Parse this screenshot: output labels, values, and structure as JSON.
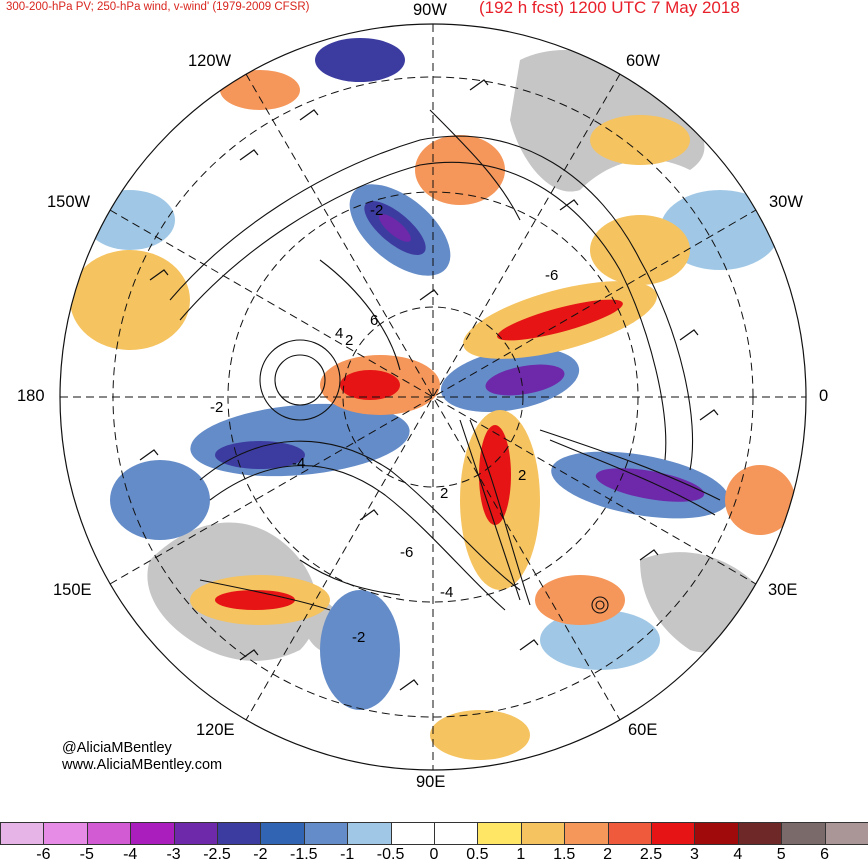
{
  "header": {
    "title_left": "300-200-hPa PV; 250-hPa wind, v-wind' (1979-2009 CFSR)",
    "title_right": "(192 h fcst) 1200 UTC 7 May 2018"
  },
  "map": {
    "projection": "polar stereographic, North Pole centered",
    "longitude_labels": {
      "top": "90W",
      "top_left": "120W",
      "top_right": "60W",
      "upper_left": "150W",
      "upper_right": "30W",
      "left": "180",
      "right": "0",
      "lower_left": "150E",
      "lower_right": "30E",
      "bottom_left": "120E",
      "bottom_right": "60E",
      "bottom": "90E"
    },
    "contour_labels": [
      "2",
      "4",
      "6",
      "-2",
      "-4",
      "-6",
      "2",
      "-2",
      "-6",
      "-4",
      "-2",
      "2"
    ],
    "land_color": "#c8c8c8",
    "grid_style": "dashed"
  },
  "credits": {
    "line1": "@AliciaMBentley",
    "line2": "www.AliciaMBentley.com"
  },
  "colorbar": {
    "colors": [
      "#e6b4e6",
      "#e68ce6",
      "#d25ad2",
      "#aa1ebe",
      "#6e28aa",
      "#3c3ca0",
      "#3264b4",
      "#648cc8",
      "#a0c8e6",
      "#ffffff",
      "#ffffff",
      "#ffe664",
      "#f5c35f",
      "#f5965a",
      "#f05a3c",
      "#e61414",
      "#a00a0a",
      "#6e2828",
      "#7a6a6a",
      "#aa9696"
    ],
    "labels": [
      "-6",
      "-5",
      "-4",
      "-3",
      "-2.5",
      "-2",
      "-1.5",
      "-1",
      "-0.5",
      "0",
      "0.5",
      "1",
      "1.5",
      "2",
      "2.5",
      "3",
      "4",
      "5",
      "6"
    ]
  }
}
